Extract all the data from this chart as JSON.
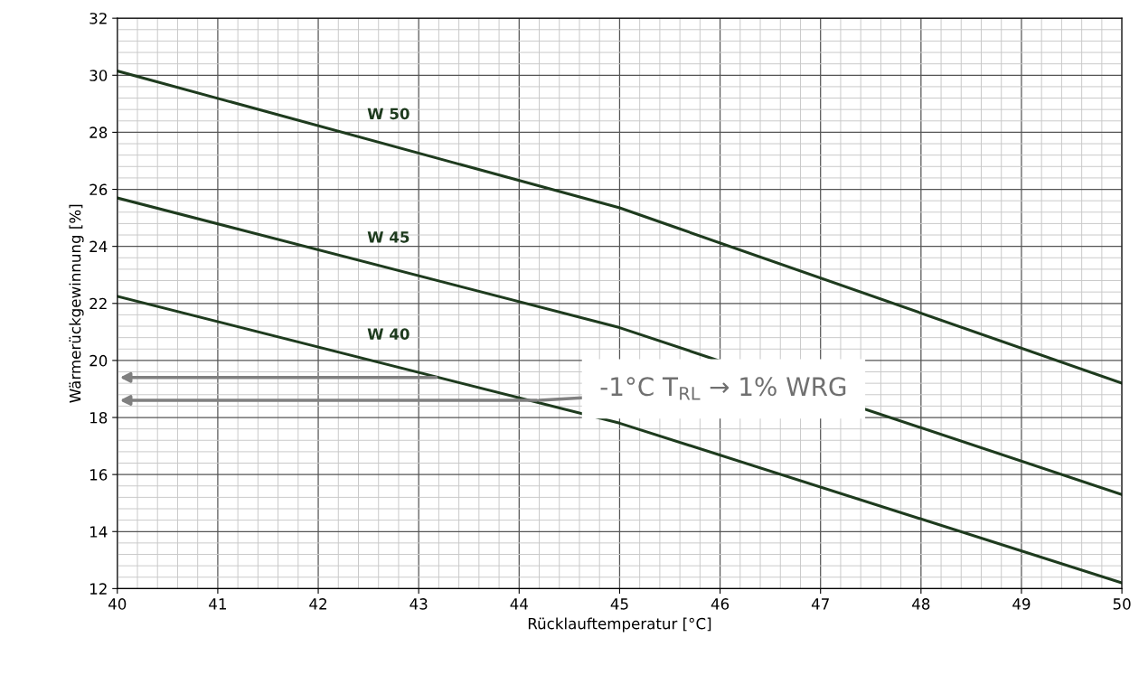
{
  "chart_data": {
    "type": "line",
    "xlabel": "Rücklauftemperatur [°C]",
    "ylabel": "Wärmerückgewinnung [%]",
    "x": [
      40,
      45,
      50
    ],
    "series": [
      {
        "name": "W 50",
        "color": "#1e3b1e",
        "values": [
          30.15,
          25.35,
          19.2
        ]
      },
      {
        "name": "W 45",
        "color": "#1e3b1e",
        "values": [
          25.7,
          21.15,
          15.3
        ]
      },
      {
        "name": "W 40",
        "color": "#1e3b1e",
        "values": [
          22.25,
          17.8,
          12.2
        ]
      }
    ],
    "xlim": [
      40,
      50
    ],
    "xticks": [
      40,
      41,
      42,
      43,
      44,
      45,
      46,
      47,
      48,
      49,
      50
    ],
    "ylim": [
      12,
      32
    ],
    "yticks": [
      12,
      14,
      16,
      18,
      20,
      22,
      24,
      26,
      28,
      30,
      32
    ],
    "grid": true,
    "marker": "none",
    "line_style": "solid",
    "legend": false,
    "annotations": [
      {
        "text": "-1°C T$_{RL}$ → 1% WRG",
        "x": 44.2,
        "y": 18.6
      }
    ]
  }
}
